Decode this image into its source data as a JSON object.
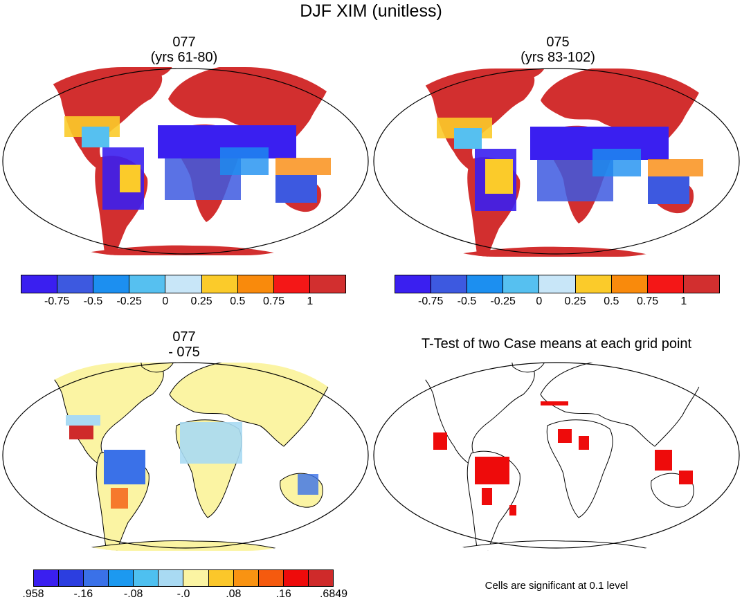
{
  "title": "DJF XIM (unitless)",
  "panels": [
    {
      "title_line1": "077",
      "title_line2": "(yrs 61-80)"
    },
    {
      "title_line1": "075",
      "title_line2": "(yrs 83-102)"
    },
    {
      "title_line1": "077",
      "title_line2": "- 075"
    },
    {
      "title_line1": "T-Test of two Case means at each grid point",
      "title_line2": ""
    }
  ],
  "colorbar_main": {
    "colors": [
      "#3a1ff0",
      "#3d59e0",
      "#1c8ff0",
      "#56c0f0",
      "#c8e6f8",
      "#fbcb2a",
      "#f98a0c",
      "#f41717",
      "#d22f2f"
    ],
    "labels": [
      "-0.75",
      "-0.5",
      "-0.25",
      "0",
      "0.25",
      "0.5",
      "0.75",
      "1"
    ]
  },
  "colorbar_diff": {
    "colors": [
      "#3a1ff0",
      "#2c3ee0",
      "#3a71e8",
      "#1c99f0",
      "#4ec0f0",
      "#a9daf3",
      "#fbf4a3",
      "#fbc72a",
      "#f99312",
      "#f55a0e",
      "#ee0b0b",
      "#cf2a2a"
    ],
    "labels": [
      ".958",
      "-.16",
      "-.08",
      "-.0",
      ".08",
      ".16",
      ".6849"
    ]
  },
  "note": "Cells are significant at 0.1 level"
}
